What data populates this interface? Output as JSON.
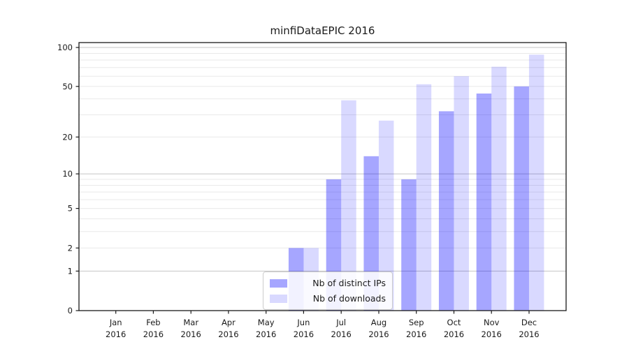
{
  "title": "minfiDataEPIC 2016",
  "chart_data": {
    "type": "bar",
    "title": "minfiDataEPIC 2016",
    "categories": [
      "Jan",
      "Feb",
      "Mar",
      "Apr",
      "May",
      "Jun",
      "Jul",
      "Aug",
      "Sep",
      "Oct",
      "Nov",
      "Dec"
    ],
    "x_year_label": "2016",
    "series": [
      {
        "name": "Nb of distinct IPs",
        "color": "rgba(0,0,255,0.35)",
        "values": [
          0,
          0,
          0,
          0,
          0,
          2,
          9,
          14,
          9,
          32,
          44,
          50
        ]
      },
      {
        "name": "Nb of downloads",
        "color": "rgba(0,0,255,0.15)",
        "values": [
          0,
          0,
          0,
          0,
          0,
          2,
          39,
          27,
          52,
          60,
          71,
          88
        ]
      }
    ],
    "xlabel": "",
    "ylabel": "",
    "y_axis": {
      "scale": "log1p",
      "tick_labels": [
        "0",
        "1",
        "2",
        "5",
        "10",
        "20",
        "50",
        "100"
      ],
      "tick_values": [
        0,
        1,
        2,
        5,
        10,
        20,
        50,
        100
      ],
      "gridline_values": [
        1,
        2,
        3,
        4,
        5,
        6,
        7,
        8,
        9,
        10,
        20,
        30,
        40,
        50,
        60,
        70,
        80,
        90,
        100
      ],
      "major_gridline_values": [
        1,
        10,
        100
      ],
      "ylim": [
        0,
        109
      ]
    },
    "legend_position": "lower center",
    "grid": true
  },
  "colors": {
    "bar_distinct_ips": "rgba(0,0,255,0.35)",
    "bar_downloads": "rgba(0,0,255,0.15)",
    "grid_minor": "#e9e9e9",
    "grid_major": "#c4c4c4",
    "frame": "#1a1a1a",
    "text": "#1a1a1a",
    "legend_border": "#cccccc",
    "legend_bg": "rgba(255,255,255,0.85)"
  }
}
